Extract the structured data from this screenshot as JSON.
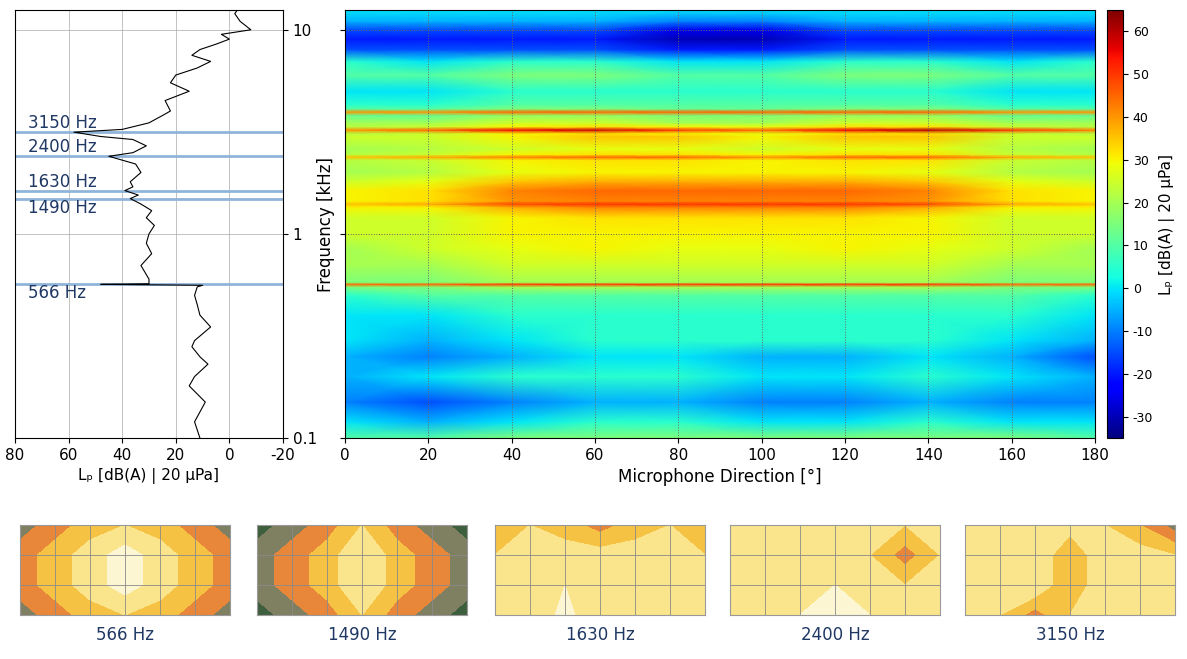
{
  "chart_data": [
    {
      "type": "line",
      "orientation": "horizontal",
      "xlabel": "Lₚ [dB(A) | 20 µPa]",
      "frequencies": [
        0.1,
        0.12,
        0.15,
        0.18,
        0.2,
        0.23,
        0.25,
        0.28,
        0.3,
        0.35,
        0.4,
        0.45,
        0.5,
        0.55,
        0.56,
        0.566,
        0.57,
        0.6,
        0.7,
        0.8,
        0.9,
        1.0,
        1.1,
        1.2,
        1.3,
        1.4,
        1.49,
        1.55,
        1.63,
        1.7,
        1.8,
        2.0,
        2.2,
        2.4,
        2.5,
        2.7,
        2.9,
        3.0,
        3.15,
        3.25,
        3.5,
        3.8,
        4.0,
        4.5,
        5.0,
        5.5,
        6.0,
        6.5,
        7.0,
        7.5,
        8.0,
        8.5,
        9.0,
        9.5,
        10.0,
        11.0,
        12.0,
        12.5
      ],
      "values": [
        11,
        13,
        9,
        15,
        13,
        8,
        11,
        14,
        13,
        7,
        11,
        12,
        13,
        12,
        10,
        48,
        30,
        30,
        33,
        29,
        31,
        30,
        28,
        31,
        29,
        33,
        37,
        34,
        39,
        36,
        37,
        33,
        35,
        45,
        36,
        31,
        36,
        48,
        58,
        40,
        30,
        25,
        22,
        24,
        15,
        22,
        20,
        12,
        7,
        14,
        11,
        5,
        0,
        3,
        -8,
        -4,
        -2,
        -3
      ],
      "color": "#000000",
      "annotations": [
        {
          "text": "3150 Hz",
          "value": 3.15
        },
        {
          "text": "2400 Hz",
          "value": 2.4
        },
        {
          "text": "1630 Hz",
          "value": 1.63
        },
        {
          "text": "1490 Hz",
          "value": 1.49
        },
        {
          "text": "566 Hz",
          "value": 0.566
        }
      ],
      "xlim": [
        80,
        -20
      ],
      "xticks": [
        80,
        60,
        40,
        20,
        0,
        -20
      ],
      "ylim": [
        0.1,
        12.5
      ],
      "yticks": [
        0.1,
        1,
        10
      ],
      "log": "y",
      "grid": true
    },
    {
      "type": "heatmap",
      "xlabel": "Microphone Direction [°]",
      "ylabel": "Frequency [kHz]",
      "x": [
        0,
        20,
        40,
        60,
        80,
        100,
        120,
        140,
        160,
        180
      ],
      "y": [
        0.1,
        0.12,
        0.15,
        0.2,
        0.25,
        0.3,
        0.4,
        0.5,
        0.55,
        0.566,
        0.58,
        0.7,
        0.85,
        1.0,
        1.2,
        1.35,
        1.4,
        1.45,
        1.63,
        1.8,
        2.0,
        2.3,
        2.38,
        2.45,
        2.6,
        3.0,
        3.1,
        3.23,
        3.35,
        3.5,
        3.8,
        3.96,
        4.1,
        4.3,
        5.0,
        6.0,
        7.0,
        8.0,
        9.0,
        10.0,
        11.0,
        12.5
      ],
      "cells": [
        [
          10,
          10,
          15,
          15,
          15,
          15,
          15,
          15,
          15,
          10
        ],
        [
          0,
          -5,
          0,
          5,
          5,
          0,
          0,
          5,
          0,
          0
        ],
        [
          -10,
          -15,
          -10,
          -5,
          -5,
          -10,
          -10,
          -5,
          -10,
          -10
        ],
        [
          -5,
          0,
          5,
          5,
          5,
          0,
          0,
          5,
          0,
          -5
        ],
        [
          -5,
          -10,
          -5,
          0,
          0,
          -5,
          -5,
          0,
          -5,
          -15
        ],
        [
          0,
          -5,
          0,
          5,
          5,
          5,
          5,
          5,
          0,
          -5
        ],
        [
          0,
          0,
          5,
          5,
          5,
          5,
          5,
          5,
          5,
          0
        ],
        [
          5,
          10,
          10,
          10,
          10,
          10,
          10,
          10,
          10,
          5
        ],
        [
          15,
          15,
          20,
          20,
          20,
          20,
          20,
          20,
          15,
          15
        ],
        [
          45,
          45,
          50,
          50,
          50,
          50,
          50,
          50,
          45,
          45
        ],
        [
          15,
          15,
          20,
          20,
          20,
          20,
          20,
          20,
          15,
          15
        ],
        [
          20,
          20,
          25,
          25,
          25,
          25,
          25,
          25,
          20,
          20
        ],
        [
          20,
          25,
          28,
          30,
          28,
          28,
          30,
          28,
          25,
          20
        ],
        [
          25,
          25,
          30,
          30,
          30,
          30,
          30,
          30,
          25,
          25
        ],
        [
          25,
          25,
          30,
          32,
          32,
          32,
          32,
          30,
          25,
          25
        ],
        [
          30,
          30,
          38,
          42,
          42,
          42,
          42,
          38,
          30,
          30
        ],
        [
          35,
          38,
          48,
          50,
          50,
          50,
          50,
          48,
          38,
          35
        ],
        [
          30,
          32,
          40,
          42,
          42,
          42,
          42,
          40,
          32,
          30
        ],
        [
          30,
          32,
          42,
          45,
          45,
          45,
          45,
          42,
          32,
          30
        ],
        [
          25,
          28,
          35,
          38,
          38,
          38,
          38,
          35,
          28,
          25
        ],
        [
          20,
          22,
          28,
          30,
          30,
          30,
          30,
          28,
          22,
          20
        ],
        [
          22,
          24,
          30,
          32,
          32,
          30,
          32,
          32,
          24,
          22
        ],
        [
          35,
          38,
          42,
          45,
          45,
          40,
          45,
          45,
          38,
          35
        ],
        [
          22,
          24,
          30,
          32,
          32,
          30,
          32,
          32,
          24,
          22
        ],
        [
          20,
          22,
          25,
          28,
          28,
          25,
          28,
          28,
          22,
          20
        ],
        [
          25,
          25,
          30,
          35,
          35,
          30,
          35,
          35,
          25,
          25
        ],
        [
          22,
          24,
          30,
          32,
          30,
          28,
          32,
          32,
          24,
          22
        ],
        [
          40,
          45,
          55,
          58,
          50,
          45,
          55,
          60,
          50,
          42
        ],
        [
          22,
          24,
          30,
          32,
          30,
          28,
          32,
          32,
          24,
          22
        ],
        [
          20,
          20,
          25,
          25,
          20,
          20,
          25,
          25,
          20,
          20
        ],
        [
          12,
          12,
          18,
          18,
          15,
          15,
          18,
          18,
          12,
          12
        ],
        [
          40,
          40,
          45,
          45,
          45,
          45,
          45,
          45,
          40,
          40
        ],
        [
          10,
          10,
          15,
          15,
          12,
          12,
          15,
          15,
          10,
          10
        ],
        [
          5,
          5,
          10,
          10,
          10,
          10,
          10,
          10,
          5,
          5
        ],
        [
          0,
          0,
          5,
          5,
          5,
          5,
          5,
          5,
          0,
          0
        ],
        [
          10,
          10,
          15,
          15,
          10,
          10,
          15,
          15,
          10,
          10
        ],
        [
          5,
          0,
          5,
          5,
          0,
          0,
          5,
          5,
          0,
          5
        ],
        [
          -15,
          -15,
          -15,
          -15,
          -20,
          -20,
          -15,
          -15,
          -15,
          -15
        ],
        [
          -20,
          -20,
          -20,
          -20,
          -30,
          -30,
          -20,
          -20,
          -20,
          -20
        ],
        [
          -15,
          -15,
          -15,
          -15,
          -25,
          -25,
          -15,
          -15,
          -15,
          -15
        ],
        [
          -5,
          -5,
          -5,
          -5,
          -10,
          -10,
          -5,
          -5,
          -5,
          -5
        ],
        [
          0,
          0,
          0,
          0,
          0,
          0,
          0,
          0,
          0,
          0
        ]
      ],
      "color": "jet",
      "colorbar": {
        "label": "Lₚ [dB(A) | 20 µPa]",
        "range": [
          -35,
          65
        ],
        "ticks": [
          -30,
          -20,
          -10,
          0,
          10,
          20,
          30,
          40,
          50,
          60
        ]
      },
      "xlim": [
        0,
        180
      ],
      "xticks": [
        0,
        20,
        40,
        60,
        80,
        100,
        120,
        140,
        160,
        180
      ],
      "ylim": [
        0.1,
        12.5
      ],
      "yticks": [
        0.1,
        1,
        10
      ],
      "log": "y",
      "grid": true,
      "tick_labels": "x"
    },
    {
      "type": "contour",
      "label": "566 Hz",
      "tick_labels": false,
      "levels": [
        0,
        1,
        2,
        3,
        4,
        5,
        6
      ],
      "colors": [
        "#3d5f3d",
        "#7f7f62",
        "#e8873a",
        "#f6c243",
        "#fbe58c",
        "#fdf6d3"
      ],
      "cells": [
        [
          1.5,
          2.5,
          3.5,
          4,
          3.5,
          2.5,
          1.5
        ],
        [
          2.5,
          3.5,
          4.5,
          5.5,
          4.5,
          3.5,
          2.5
        ],
        [
          2.5,
          3.5,
          4.5,
          5.5,
          4.5,
          3.5,
          2.5
        ],
        [
          1.5,
          2.5,
          3.5,
          4,
          3.5,
          2.5,
          1.5
        ]
      ]
    },
    {
      "type": "contour",
      "label": "1490 Hz",
      "tick_labels": false,
      "levels": [
        0,
        1,
        2,
        3,
        4,
        5,
        6
      ],
      "colors": [
        "#3d5f3d",
        "#7f7f62",
        "#e8873a",
        "#f6c243",
        "#fbe58c",
        "#fdf6d3"
      ],
      "cells": [
        [
          0.5,
          1.5,
          2.5,
          4,
          2.5,
          1.5,
          0.5
        ],
        [
          1.5,
          2.5,
          3.5,
          5,
          3.5,
          2.5,
          1.5
        ],
        [
          1.5,
          2.5,
          3.5,
          5,
          3.5,
          2.5,
          1.5
        ],
        [
          0.5,
          1.5,
          2.5,
          4,
          2.5,
          1.5,
          0.5
        ]
      ]
    },
    {
      "type": "contour",
      "label": "1630 Hz",
      "tick_labels": false,
      "levels": [
        0,
        1,
        2,
        3,
        4,
        5,
        6
      ],
      "colors": [
        "#3d5f3d",
        "#7f7f62",
        "#e8873a",
        "#f6c243",
        "#fbe58c",
        "#fdf6d3"
      ],
      "cells": [
        [
          4,
          4.5,
          5.2,
          4.5,
          5,
          4.5,
          4
        ],
        [
          4,
          4.5,
          5,
          4.5,
          5,
          4.5,
          4
        ],
        [
          4,
          4.5,
          4.5,
          4.5,
          4.5,
          4.5,
          4
        ],
        [
          4,
          4,
          3.5,
          2.5,
          3.5,
          4,
          4
        ]
      ]
    },
    {
      "type": "contour",
      "label": "2400 Hz",
      "tick_labels": false,
      "levels": [
        0,
        1,
        2,
        3,
        4,
        5,
        6
      ],
      "colors": [
        "#3d5f3d",
        "#7f7f62",
        "#e8873a",
        "#f6c243",
        "#fbe58c",
        "#fdf6d3"
      ],
      "cells": [
        [
          4,
          4.5,
          5,
          5.2,
          5,
          4.5,
          4.5
        ],
        [
          4,
          4.5,
          5,
          5,
          4.5,
          4,
          4.5
        ],
        [
          4.5,
          4.5,
          4.5,
          4.5,
          4,
          2.5,
          4
        ],
        [
          4.5,
          5,
          5,
          5,
          4.5,
          4,
          4.5
        ]
      ]
    },
    {
      "type": "contour",
      "label": "3150 Hz",
      "tick_labels": false,
      "levels": [
        0,
        1,
        2,
        3,
        4,
        5,
        6
      ],
      "colors": [
        "#3d5f3d",
        "#7f7f62",
        "#e8873a",
        "#f6c243",
        "#fbe58c",
        "#fdf6d3"
      ],
      "cells": [
        [
          4.5,
          4,
          2.5,
          4,
          4.5,
          4,
          4.5
        ],
        [
          4,
          4.5,
          5,
          3,
          5,
          4.5,
          4
        ],
        [
          4,
          4.5,
          5,
          3,
          5,
          4.5,
          4
        ],
        [
          4.5,
          4,
          4,
          4.5,
          4,
          3,
          1.5
        ]
      ]
    }
  ]
}
